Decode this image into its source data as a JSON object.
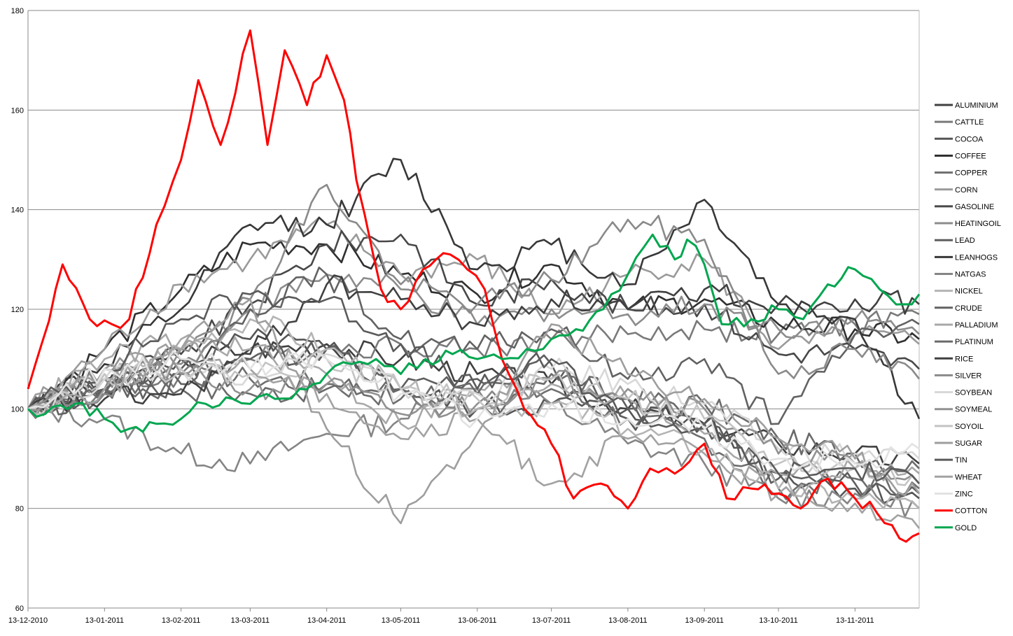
{
  "chart_data": {
    "type": "line",
    "title": "",
    "xlabel": "",
    "ylabel": "",
    "ylim": [
      60,
      180
    ],
    "yticks": [
      60,
      80,
      100,
      120,
      140,
      160,
      180
    ],
    "x_tick_labels": [
      "13-12-2010",
      "13-01-2011",
      "13-02-2011",
      "13-03-2011",
      "13-04-2011",
      "13-05-2011",
      "13-06-2011",
      "13-07-2011",
      "13-08-2011",
      "13-09-2011",
      "13-10-2011",
      "13-11-2011"
    ],
    "x_ticks": [
      "2010-12-13",
      "2011-01-13",
      "2011-02-13",
      "2011-03-13",
      "2011-04-13",
      "2011-05-13",
      "2011-06-13",
      "2011-07-13",
      "2011-08-13",
      "2011-09-13",
      "2011-10-13",
      "2011-11-13"
    ],
    "xlim": [
      "2010-12-13",
      "2011-12-09"
    ],
    "grid": "horizontal",
    "legend_position": "right",
    "series": [
      {
        "name": "ALUMINIUM",
        "color": "#404040",
        "x": [
          "2010-12-13",
          "2011-01-13",
          "2011-02-13",
          "2011-03-13",
          "2011-04-13",
          "2011-05-13",
          "2011-06-13",
          "2011-07-13",
          "2011-08-13",
          "2011-09-13",
          "2011-10-13",
          "2011-11-13",
          "2011-12-09"
        ],
        "y": [
          100,
          104,
          110,
          112,
          113,
          110,
          107,
          105,
          100,
          97,
          93,
          91,
          89
        ]
      },
      {
        "name": "CATTLE",
        "color": "#7a7a7a",
        "x": [
          "2010-12-13",
          "2011-01-13",
          "2011-02-13",
          "2011-03-13",
          "2011-04-13",
          "2011-05-13",
          "2011-06-13",
          "2011-07-13",
          "2011-08-13",
          "2011-09-13",
          "2011-10-13",
          "2011-11-13",
          "2011-12-09"
        ],
        "y": [
          100,
          103,
          107,
          110,
          112,
          113,
          112,
          114,
          115,
          116,
          115,
          117,
          119
        ]
      },
      {
        "name": "COCOA",
        "color": "#555555",
        "x": [
          "2010-12-13",
          "2011-01-13",
          "2011-02-13",
          "2011-03-13",
          "2011-04-13",
          "2011-05-13",
          "2011-06-13",
          "2011-07-13",
          "2011-08-13",
          "2011-09-13",
          "2011-10-13",
          "2011-11-13",
          "2011-12-09"
        ],
        "y": [
          100,
          104,
          110,
          114,
          112,
          104,
          100,
          101,
          100,
          97,
          87,
          84,
          82
        ]
      },
      {
        "name": "COFFEE",
        "color": "#303030",
        "x": [
          "2010-12-13",
          "2011-01-13",
          "2011-02-13",
          "2011-03-13",
          "2011-04-13",
          "2011-05-13",
          "2011-06-13",
          "2011-07-13",
          "2011-08-13",
          "2011-09-13",
          "2011-10-13",
          "2011-11-13",
          "2011-12-09"
        ],
        "y": [
          100,
          112,
          124,
          133,
          133,
          127,
          123,
          129,
          120,
          122,
          117,
          116,
          114
        ]
      },
      {
        "name": "COPPER",
        "color": "#6e6e6e",
        "x": [
          "2010-12-13",
          "2011-01-13",
          "2011-02-13",
          "2011-03-13",
          "2011-04-13",
          "2011-05-13",
          "2011-06-13",
          "2011-07-13",
          "2011-08-13",
          "2011-09-13",
          "2011-10-13",
          "2011-11-13",
          "2011-12-09"
        ],
        "y": [
          100,
          104,
          107,
          106,
          105,
          102,
          100,
          104,
          98,
          94,
          84,
          86,
          84
        ]
      },
      {
        "name": "CORN",
        "color": "#9a9a9a",
        "x": [
          "2010-12-13",
          "2011-01-13",
          "2011-02-13",
          "2011-03-13",
          "2011-04-13",
          "2011-05-13",
          "2011-06-13",
          "2011-07-13",
          "2011-08-13",
          "2011-09-13",
          "2011-10-13",
          "2011-11-13",
          "2011-12-09"
        ],
        "y": [
          100,
          112,
          125,
          130,
          137,
          127,
          130,
          119,
          127,
          130,
          112,
          115,
          113
        ]
      },
      {
        "name": "GASOLINE",
        "color": "#484848",
        "x": [
          "2010-12-13",
          "2011-01-13",
          "2011-02-13",
          "2011-03-13",
          "2011-04-13",
          "2011-05-13",
          "2011-06-13",
          "2011-07-13",
          "2011-08-13",
          "2011-09-13",
          "2011-10-13",
          "2011-11-13",
          "2011-12-09"
        ],
        "y": [
          100,
          106,
          111,
          121,
          133,
          135,
          121,
          126,
          120,
          121,
          111,
          112,
          108
        ]
      },
      {
        "name": "HEATINGOIL",
        "color": "#8c8c8c",
        "x": [
          "2010-12-13",
          "2011-01-13",
          "2011-02-13",
          "2011-03-13",
          "2011-04-13",
          "2011-05-13",
          "2011-06-13",
          "2011-07-13",
          "2011-08-13",
          "2011-09-13",
          "2011-10-13",
          "2011-11-13",
          "2011-12-09"
        ],
        "y": [
          100,
          106,
          112,
          120,
          127,
          124,
          117,
          120,
          119,
          121,
          116,
          118,
          115
        ]
      },
      {
        "name": "LEAD",
        "color": "#5e5e5e",
        "x": [
          "2010-12-13",
          "2011-01-13",
          "2011-02-13",
          "2011-03-13",
          "2011-04-13",
          "2011-05-13",
          "2011-06-13",
          "2011-07-13",
          "2011-08-13",
          "2011-09-13",
          "2011-10-13",
          "2011-11-13",
          "2011-12-09"
        ],
        "y": [
          100,
          104,
          108,
          110,
          112,
          104,
          106,
          109,
          100,
          97,
          86,
          85,
          83
        ]
      },
      {
        "name": "LEANHOGS",
        "color": "#383838",
        "x": [
          "2010-12-13",
          "2011-01-13",
          "2011-02-13",
          "2011-03-13",
          "2011-04-13",
          "2011-05-13",
          "2011-06-13",
          "2011-07-13",
          "2011-08-13",
          "2011-09-13",
          "2011-10-13",
          "2011-11-13",
          "2011-12-09"
        ],
        "y": [
          100,
          109,
          120,
          137,
          137,
          150,
          128,
          133,
          125,
          142,
          121,
          118,
          98
        ]
      },
      {
        "name": "NATGAS",
        "color": "#858585",
        "x": [
          "2010-12-13",
          "2011-01-13",
          "2011-02-13",
          "2011-03-13",
          "2011-04-13",
          "2011-05-13",
          "2011-06-13",
          "2011-07-13",
          "2011-08-13",
          "2011-09-13",
          "2011-10-13",
          "2011-11-13",
          "2011-12-09"
        ],
        "y": [
          100,
          98,
          91,
          89,
          95,
          98,
          104,
          101,
          93,
          89,
          82,
          83,
          80
        ]
      },
      {
        "name": "NICKEL",
        "color": "#b4b4b4",
        "x": [
          "2010-12-13",
          "2011-01-13",
          "2011-02-13",
          "2011-03-13",
          "2011-04-13",
          "2011-05-13",
          "2011-06-13",
          "2011-07-13",
          "2011-08-13",
          "2011-09-13",
          "2011-10-13",
          "2011-11-13",
          "2011-12-09"
        ],
        "y": [
          100,
          106,
          112,
          118,
          112,
          104,
          100,
          101,
          96,
          92,
          84,
          82,
          80
        ]
      },
      {
        "name": "CRUDE",
        "color": "#626262",
        "x": [
          "2010-12-13",
          "2011-01-13",
          "2011-02-13",
          "2011-03-13",
          "2011-04-13",
          "2011-05-13",
          "2011-06-13",
          "2011-07-13",
          "2011-08-13",
          "2011-09-13",
          "2011-10-13",
          "2011-11-13",
          "2011-12-09"
        ],
        "y": [
          100,
          103,
          105,
          120,
          127,
          114,
          112,
          116,
          106,
          110,
          97,
          115,
          117
        ]
      },
      {
        "name": "PALLADIUM",
        "color": "#a8a8a8",
        "x": [
          "2010-12-13",
          "2011-01-13",
          "2011-02-13",
          "2011-03-13",
          "2011-04-13",
          "2011-05-13",
          "2011-06-13",
          "2011-07-13",
          "2011-08-13",
          "2011-09-13",
          "2011-10-13",
          "2011-11-13",
          "2011-12-09"
        ],
        "y": [
          100,
          110,
          114,
          112,
          107,
          97,
          104,
          105,
          102,
          95,
          87,
          88,
          87
        ]
      },
      {
        "name": "PLATINUM",
        "color": "#6a6a6a",
        "x": [
          "2010-12-13",
          "2011-01-13",
          "2011-02-13",
          "2011-03-13",
          "2011-04-13",
          "2011-05-13",
          "2011-06-13",
          "2011-07-13",
          "2011-08-13",
          "2011-09-13",
          "2011-10-13",
          "2011-11-13",
          "2011-12-09"
        ],
        "y": [
          100,
          104,
          104,
          103,
          104,
          104,
          103,
          107,
          102,
          101,
          94,
          91,
          88
        ]
      },
      {
        "name": "RICE",
        "color": "#404040",
        "x": [
          "2010-12-13",
          "2011-01-13",
          "2011-02-13",
          "2011-03-13",
          "2011-04-13",
          "2011-05-13",
          "2011-06-13",
          "2011-07-13",
          "2011-08-13",
          "2011-09-13",
          "2011-10-13",
          "2011-11-13",
          "2011-12-09"
        ],
        "y": [
          100,
          102,
          103,
          111,
          125,
          122,
          117,
          122,
          120,
          124,
          121,
          122,
          121
        ]
      },
      {
        "name": "SILVER",
        "color": "#8a8a8a",
        "x": [
          "2010-12-13",
          "2011-01-13",
          "2011-02-13",
          "2011-03-13",
          "2011-04-13",
          "2011-05-13",
          "2011-06-13",
          "2011-07-13",
          "2011-08-13",
          "2011-09-13",
          "2011-10-13",
          "2011-11-13",
          "2011-12-09"
        ],
        "y": [
          100,
          103,
          109,
          122,
          145,
          125,
          121,
          126,
          138,
          134,
          107,
          112,
          106
        ]
      },
      {
        "name": "SOYBEAN",
        "color": "#d8d8d8",
        "x": [
          "2010-12-13",
          "2011-01-13",
          "2011-02-13",
          "2011-03-13",
          "2011-04-13",
          "2011-05-13",
          "2011-06-13",
          "2011-07-13",
          "2011-08-13",
          "2011-09-13",
          "2011-10-13",
          "2011-11-13",
          "2011-12-09"
        ],
        "y": [
          100,
          106,
          108,
          107,
          111,
          104,
          103,
          108,
          105,
          101,
          92,
          91,
          90
        ]
      },
      {
        "name": "SOYMEAL",
        "color": "#919191",
        "x": [
          "2010-12-13",
          "2011-01-13",
          "2011-02-13",
          "2011-03-13",
          "2011-04-13",
          "2011-05-13",
          "2011-06-13",
          "2011-07-13",
          "2011-08-13",
          "2011-09-13",
          "2011-10-13",
          "2011-11-13",
          "2011-12-09"
        ],
        "y": [
          100,
          108,
          107,
          104,
          105,
          99,
          101,
          106,
          104,
          100,
          91,
          89,
          85
        ]
      },
      {
        "name": "SOYOIL",
        "color": "#c4c4c4",
        "x": [
          "2010-12-13",
          "2011-01-13",
          "2011-02-13",
          "2011-03-13",
          "2011-04-13",
          "2011-05-13",
          "2011-06-13",
          "2011-07-13",
          "2011-08-13",
          "2011-09-13",
          "2011-10-13",
          "2011-11-13",
          "2011-12-09"
        ],
        "y": [
          100,
          107,
          108,
          107,
          110,
          104,
          102,
          106,
          102,
          98,
          89,
          88,
          85
        ]
      },
      {
        "name": "SUGAR",
        "color": "#9e9e9e",
        "x": [
          "2010-12-13",
          "2011-01-13",
          "2011-02-13",
          "2011-03-13",
          "2011-04-13",
          "2011-05-13",
          "2011-06-13",
          "2011-07-13",
          "2011-08-13",
          "2011-09-13",
          "2011-10-13",
          "2011-11-13",
          "2011-12-09"
        ],
        "y": [
          100,
          108,
          112,
          122,
          96,
          77,
          95,
          117,
          107,
          102,
          94,
          90,
          83
        ]
      },
      {
        "name": "TIN",
        "color": "#5a5a5a",
        "x": [
          "2010-12-13",
          "2011-01-13",
          "2011-02-13",
          "2011-03-13",
          "2011-04-13",
          "2011-05-13",
          "2011-06-13",
          "2011-07-13",
          "2011-08-13",
          "2011-09-13",
          "2011-10-13",
          "2011-11-13",
          "2011-12-09"
        ],
        "y": [
          100,
          108,
          118,
          123,
          122,
          113,
          104,
          110,
          98,
          96,
          87,
          88,
          85
        ]
      },
      {
        "name": "WHEAT",
        "color": "#a2a2a2",
        "x": [
          "2010-12-13",
          "2011-01-13",
          "2011-02-13",
          "2011-03-13",
          "2011-04-13",
          "2011-05-13",
          "2011-06-13",
          "2011-07-13",
          "2011-08-13",
          "2011-09-13",
          "2011-10-13",
          "2011-11-13",
          "2011-12-09"
        ],
        "y": [
          100,
          104,
          112,
          108,
          103,
          94,
          98,
          85,
          94,
          91,
          83,
          81,
          76
        ]
      },
      {
        "name": "ZINC",
        "color": "#e2e2e2",
        "x": [
          "2010-12-13",
          "2011-01-13",
          "2011-02-13",
          "2011-03-13",
          "2011-04-13",
          "2011-05-13",
          "2011-06-13",
          "2011-07-13",
          "2011-08-13",
          "2011-09-13",
          "2011-10-13",
          "2011-11-13",
          "2011-12-09"
        ],
        "y": [
          100,
          108,
          110,
          108,
          110,
          103,
          98,
          101,
          98,
          96,
          90,
          89,
          92
        ]
      },
      {
        "name": "COTTON",
        "color": "#ff0000",
        "x": [
          "2010-12-13",
          "2010-12-16",
          "2010-12-27",
          "2011-01-07",
          "2011-01-16",
          "2011-01-23",
          "2011-02-03",
          "2011-02-13",
          "2011-02-20",
          "2011-03-01",
          "2011-03-13",
          "2011-03-20",
          "2011-03-27",
          "2011-04-05",
          "2011-04-13",
          "2011-04-20",
          "2011-04-25",
          "2011-05-05",
          "2011-05-13",
          "2011-05-22",
          "2011-06-02",
          "2011-06-09",
          "2011-06-16",
          "2011-06-23",
          "2011-07-02",
          "2011-07-13",
          "2011-07-22",
          "2011-08-02",
          "2011-08-13",
          "2011-08-22",
          "2011-09-01",
          "2011-09-13",
          "2011-09-22",
          "2011-10-02",
          "2011-10-13",
          "2011-10-22",
          "2011-11-02",
          "2011-11-13",
          "2011-11-22",
          "2011-12-01",
          "2011-12-09"
        ],
        "y": [
          104,
          109,
          129,
          118,
          117,
          118,
          137,
          150,
          166,
          153,
          176,
          153,
          172,
          161,
          171,
          162,
          146,
          124,
          120,
          128,
          131,
          128,
          124,
          110,
          100,
          93,
          82,
          85,
          80,
          88,
          87,
          93,
          82,
          84,
          83,
          80,
          86,
          82,
          79,
          74,
          75
        ]
      },
      {
        "name": "GOLD",
        "color": "#00a64f",
        "x": [
          "2010-12-13",
          "2010-12-20",
          "2011-01-01",
          "2011-01-13",
          "2011-01-23",
          "2011-02-03",
          "2011-02-13",
          "2011-02-23",
          "2011-03-06",
          "2011-03-13",
          "2011-03-23",
          "2011-04-02",
          "2011-04-13",
          "2011-04-23",
          "2011-05-03",
          "2011-05-13",
          "2011-05-23",
          "2011-06-03",
          "2011-06-13",
          "2011-06-23",
          "2011-07-03",
          "2011-07-13",
          "2011-07-23",
          "2011-08-03",
          "2011-08-13",
          "2011-08-23",
          "2011-09-01",
          "2011-09-06",
          "2011-09-13",
          "2011-09-20",
          "2011-10-02",
          "2011-10-13",
          "2011-10-23",
          "2011-11-02",
          "2011-11-13",
          "2011-11-23",
          "2011-12-03",
          "2011-12-09"
        ],
        "y": [
          100,
          99,
          101,
          98,
          96,
          97,
          98,
          101,
          102,
          101,
          102,
          104,
          107,
          109,
          110,
          107,
          110,
          111,
          110,
          110,
          112,
          114,
          116,
          120,
          127,
          135,
          130,
          134,
          129,
          117,
          118,
          120,
          118,
          125,
          128,
          124,
          121,
          123
        ]
      }
    ]
  }
}
